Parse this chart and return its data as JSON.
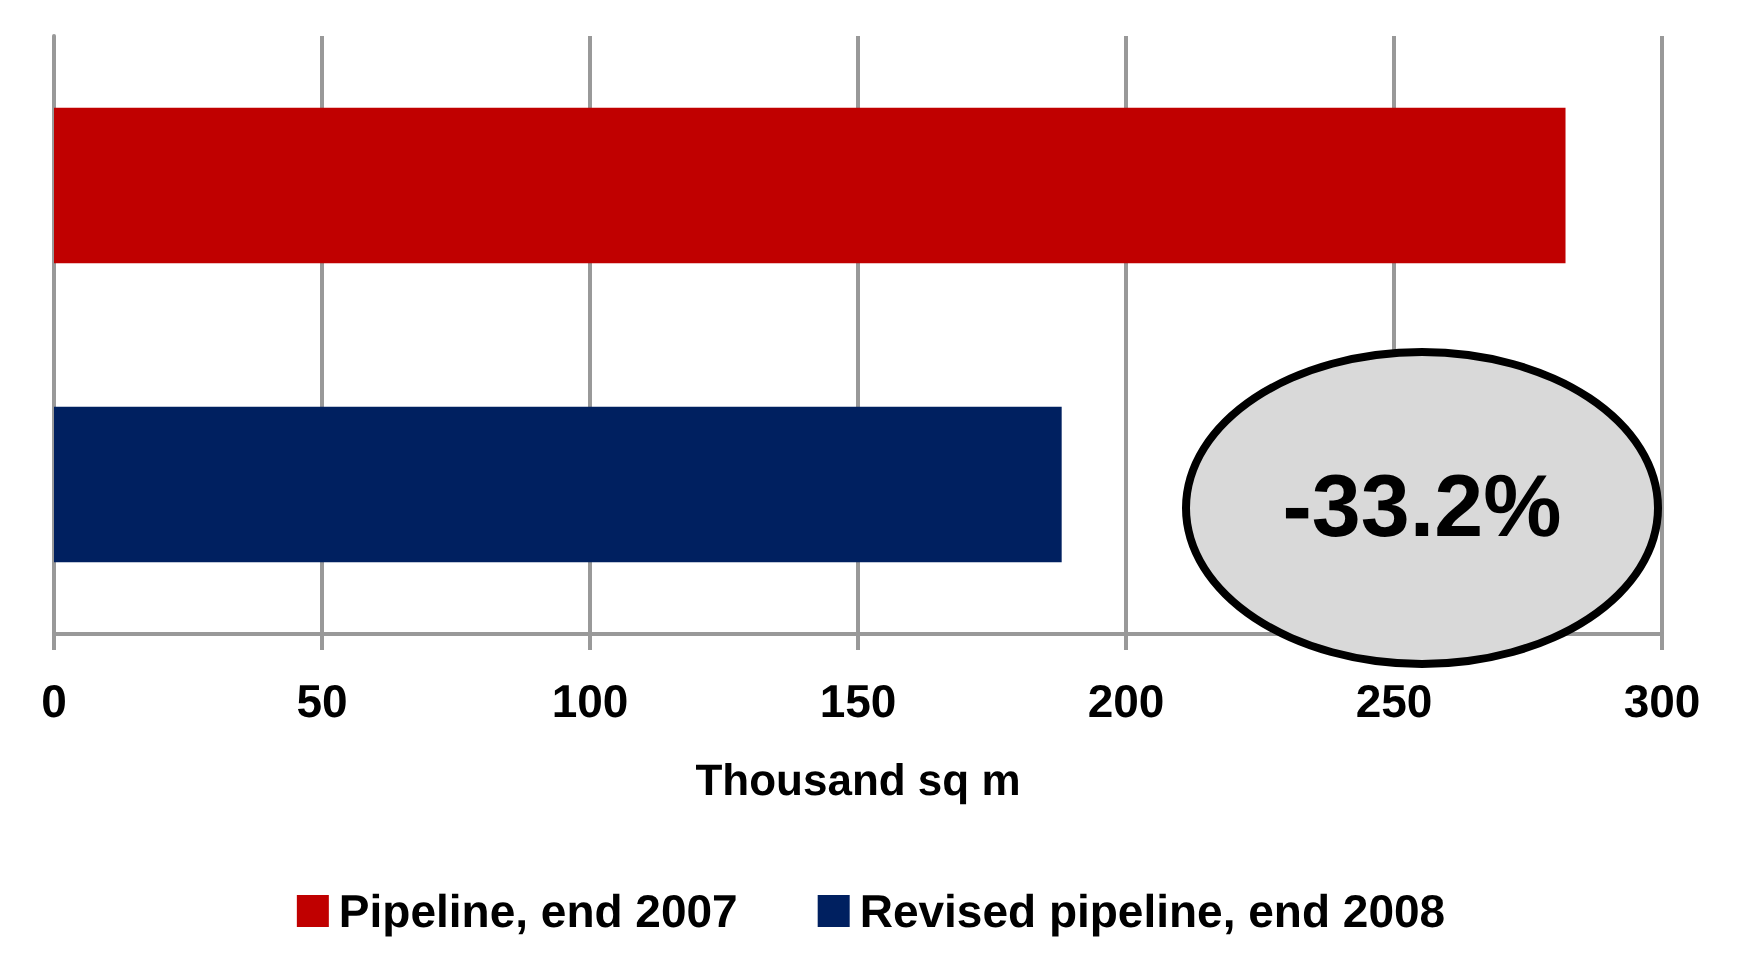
{
  "chart_data": {
    "type": "bar",
    "orientation": "horizontal",
    "categories": [
      null,
      null
    ],
    "series": [
      {
        "name": "Pipeline, end 2007",
        "color": "#c00000",
        "values": [
          282,
          null
        ]
      },
      {
        "name": "Revised pipeline, end 2008",
        "color": "#002060",
        "values": [
          null,
          188
        ]
      }
    ],
    "xlabel": "Thousand sq m",
    "xlim": [
      0,
      300
    ],
    "xticks": [
      0,
      50,
      100,
      150,
      200,
      250,
      300
    ],
    "grid": "x",
    "legend": "bottom",
    "annotations": [
      "-33.2%"
    ]
  }
}
